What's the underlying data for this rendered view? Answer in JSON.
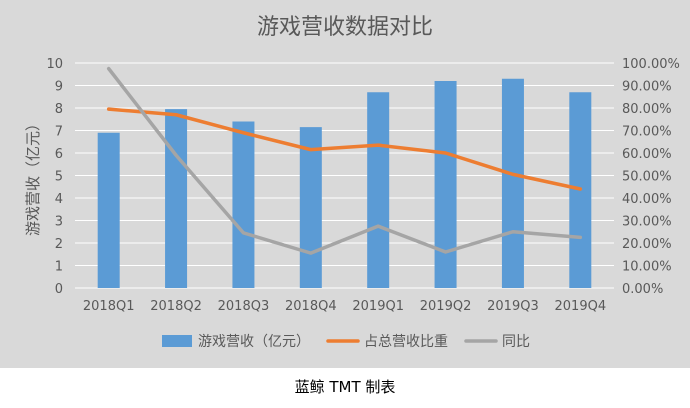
{
  "chart_data": {
    "type": "bar",
    "title": "游戏营收数据对比",
    "ylabel": "游戏营收（亿元）",
    "categories": [
      "2018Q1",
      "2018Q2",
      "2018Q3",
      "2018Q4",
      "2019Q1",
      "2019Q2",
      "2019Q3",
      "2019Q4"
    ],
    "ylim": [
      0,
      10
    ],
    "y_ticks": [
      "0",
      "1",
      "2",
      "3",
      "4",
      "5",
      "6",
      "7",
      "8",
      "9",
      "10"
    ],
    "y2lim": [
      0,
      1.0
    ],
    "y2_ticks": [
      "0.00%",
      "10.00%",
      "20.00%",
      "30.00%",
      "40.00%",
      "50.00%",
      "60.00%",
      "70.00%",
      "80.00%",
      "90.00%",
      "100.00%"
    ],
    "grid": true,
    "legend_position": "bottom",
    "series": [
      {
        "name": "游戏营收（亿元）",
        "type": "bar",
        "axis": "left",
        "color": "#5b9bd5",
        "values": [
          6.9,
          7.95,
          7.4,
          7.15,
          8.7,
          9.2,
          9.3,
          8.7
        ]
      },
      {
        "name": "占总营收比重",
        "type": "line",
        "axis": "right",
        "color": "#ed7d31",
        "values": [
          0.795,
          0.77,
          0.69,
          0.615,
          0.635,
          0.6,
          0.505,
          0.44
        ]
      },
      {
        "name": "同比",
        "type": "line",
        "axis": "right",
        "color": "#a5a5a5",
        "values": [
          0.975,
          0.59,
          0.245,
          0.155,
          0.275,
          0.16,
          0.25,
          0.225
        ]
      }
    ]
  },
  "footer": {
    "caption": "蓝鲸 TMT 制表"
  },
  "colors": {
    "plot_background": "#d9d9d9",
    "gridline": "#ffffff"
  }
}
